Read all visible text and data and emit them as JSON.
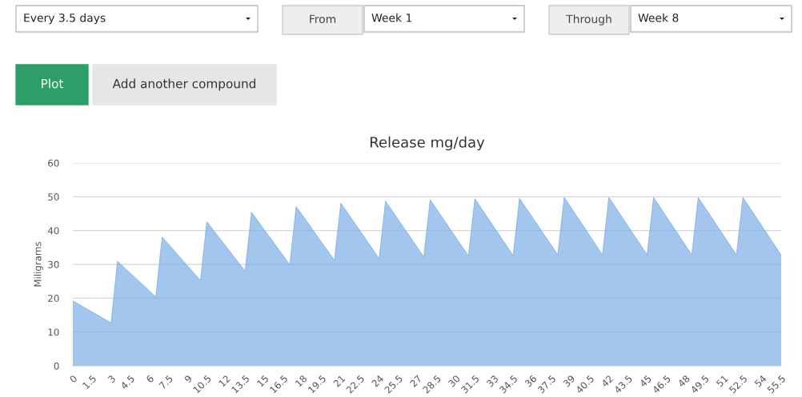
{
  "chart_data": {
    "type": "area",
    "title": "Release mg/day",
    "ylabel": "Miligrams",
    "x": [
      0,
      3,
      3.5,
      6.5,
      7,
      10,
      10.5,
      13.5,
      14,
      17,
      17.5,
      20.5,
      21,
      24,
      24.5,
      27.5,
      28,
      31,
      31.5,
      34.5,
      35,
      38,
      38.5,
      41.5,
      42,
      45,
      45.5,
      48.5,
      49,
      52,
      52.5,
      55.5
    ],
    "series": [
      {
        "color": "#7aaee6",
        "values": [
          19.2,
          12.7,
          30.9,
          20.4,
          38.1,
          25.2,
          42.6,
          28.0,
          45.4,
          29.9,
          47.1,
          31.2,
          48.1,
          31.7,
          48.7,
          32.2,
          49.1,
          32.5,
          49.4,
          32.6,
          49.5,
          32.8,
          49.8,
          32.8,
          49.8,
          32.8,
          49.8,
          32.8,
          49.8,
          32.8,
          49.8,
          32.7
        ]
      }
    ],
    "xlim": [
      0,
      55.5
    ],
    "xticks": [
      0,
      1.5,
      3,
      4.5,
      6,
      7.5,
      9,
      10.5,
      12,
      13.5,
      15,
      16.5,
      18,
      19.5,
      21,
      22.5,
      24,
      25.5,
      27,
      28.5,
      30,
      31.5,
      33,
      34.5,
      36,
      37.5,
      39,
      40.5,
      42,
      43.5,
      45,
      46.5,
      48,
      49.5,
      51,
      52.5,
      54,
      55.5
    ],
    "ylim": [
      0,
      60
    ],
    "yticks": [
      0,
      10,
      20,
      30,
      40,
      50,
      60
    ],
    "grid": "y",
    "legend": false,
    "annotations": [
      "Every 3.5 days",
      "From",
      "Week 1",
      "Through",
      "Week 8",
      "Plot",
      "Add another compound"
    ]
  }
}
